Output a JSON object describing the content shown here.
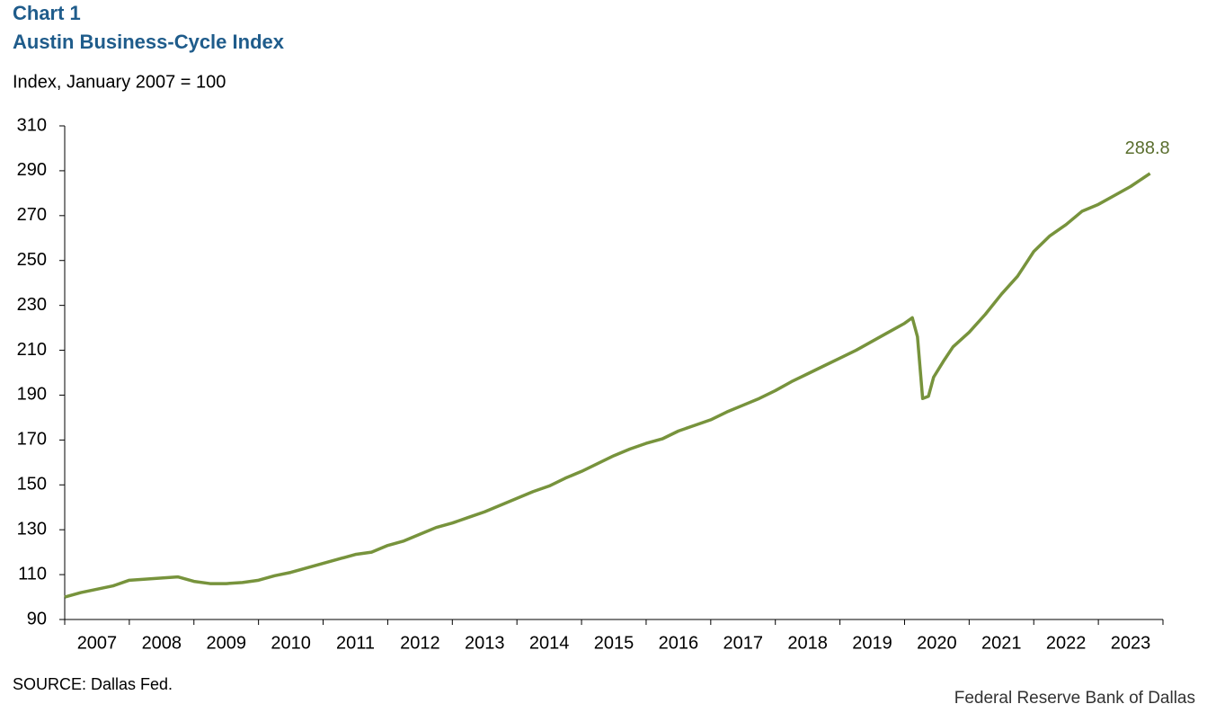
{
  "chart_data": {
    "type": "line",
    "title": "Chart 1",
    "subtitle": "Austin Business-Cycle Index",
    "y_label": "Index, January 2007 = 100",
    "source": "SOURCE: Dallas Fed.",
    "credit": "Federal Reserve Bank of Dallas",
    "x": [
      2007.0,
      2007.25,
      2007.5,
      2007.75,
      2008.0,
      2008.25,
      2008.5,
      2008.75,
      2009.0,
      2009.25,
      2009.5,
      2009.75,
      2010.0,
      2010.25,
      2010.5,
      2010.75,
      2011.0,
      2011.25,
      2011.5,
      2011.75,
      2012.0,
      2012.25,
      2012.5,
      2012.75,
      2013.0,
      2013.25,
      2013.5,
      2013.75,
      2014.0,
      2014.25,
      2014.5,
      2014.75,
      2015.0,
      2015.25,
      2015.5,
      2015.75,
      2016.0,
      2016.25,
      2016.5,
      2016.75,
      2017.0,
      2017.25,
      2017.5,
      2017.75,
      2018.0,
      2018.25,
      2018.5,
      2018.75,
      2019.0,
      2019.25,
      2019.5,
      2019.75,
      2020.0,
      2020.12,
      2020.2,
      2020.28,
      2020.37,
      2020.45,
      2020.6,
      2020.75,
      2021.0,
      2021.25,
      2021.5,
      2021.75,
      2022.0,
      2022.25,
      2022.5,
      2022.75,
      2023.0,
      2023.25,
      2023.5,
      2023.8
    ],
    "series": [
      {
        "name": "Austin Business-Cycle Index",
        "color": "#77933c",
        "values": [
          100,
          102,
          103.5,
          105,
          107.5,
          108,
          108.5,
          109,
          107,
          106,
          106,
          106.5,
          107.5,
          109.5,
          111,
          113,
          115,
          117,
          119,
          120,
          123,
          125,
          128,
          131,
          133,
          135.5,
          138,
          141,
          144,
          147,
          149.5,
          153,
          156,
          159.5,
          163,
          166,
          168.5,
          170.5,
          174,
          176.5,
          179,
          182.5,
          185.5,
          188.5,
          192,
          196,
          199.5,
          203,
          206.5,
          210,
          214,
          218,
          222,
          224.5,
          216,
          188.5,
          189.5,
          198,
          205,
          211.5,
          218,
          226,
          235,
          243,
          254,
          261,
          266,
          272,
          275,
          279,
          283,
          288.8
        ]
      }
    ],
    "xlim": [
      2007,
      2024
    ],
    "xticks": [
      2007,
      2008,
      2009,
      2010,
      2011,
      2012,
      2013,
      2014,
      2015,
      2016,
      2017,
      2018,
      2019,
      2020,
      2021,
      2022,
      2023
    ],
    "ylim": [
      90,
      310
    ],
    "yticks": [
      90,
      110,
      130,
      150,
      170,
      190,
      210,
      230,
      250,
      270,
      290,
      310
    ],
    "grid": false
  }
}
